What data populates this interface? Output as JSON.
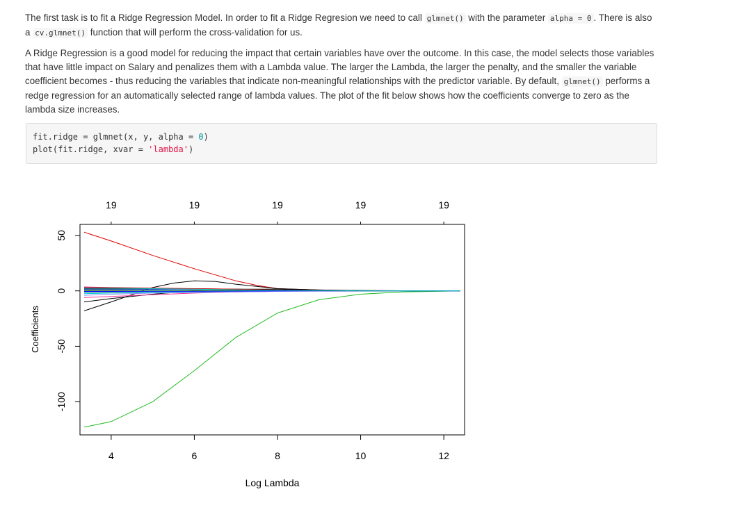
{
  "para1": {
    "t1": "The first task is to fit a Ridge Regression Model. In order to fit a Ridge Regresion we need to call ",
    "c1": "glmnet()",
    "t2": " with the parameter ",
    "c2": "alpha = 0",
    "t3": ". There is also a ",
    "c3": "cv.glmnet()",
    "t4": " function that will perform the cross-validation for us."
  },
  "para2": {
    "t1": "A Ridge Regression is a good model for reducing the impact that certain variables have over the outcome. In this case, the model selects those variables that have little impact on Salary and penalizes them with a Lambda value. The larger the Lambda, the larger the penalty, and the smaller the variable coefficient becomes - thus reducing the variables that indicate non-meaningful relationships with the predictor variable. By default, ",
    "c1": "glmnet()",
    "t2": " performs a redge regression for an automatically selected range of lambda values. The plot of the fit below shows how the coefficients converge to zero as the lambda size increases."
  },
  "code": {
    "l1_a": "fit.ridge = glmnet(x, y, alpha = ",
    "l1_num": "0",
    "l1_b": ")",
    "l2_a": "plot(fit.ridge, xvar = ",
    "l2_str": "'lambda'",
    "l2_b": ")"
  },
  "chart_data": {
    "type": "line",
    "title": "",
    "xlabel": "Log Lambda",
    "ylabel": "Coefficients",
    "xlim": [
      3.25,
      12.5
    ],
    "ylim": [
      -130,
      60
    ],
    "x_ticks": [
      4,
      6,
      8,
      10,
      12
    ],
    "y_ticks": [
      50,
      0,
      -50,
      -100
    ],
    "top_axis": {
      "positions": [
        4,
        6,
        8,
        10,
        12
      ],
      "labels": [
        "19",
        "19",
        "19",
        "19",
        "19"
      ]
    },
    "grid": false,
    "legend": "none",
    "series": [
      {
        "color": "#dd0000",
        "x": [
          3.35,
          4,
          5,
          6,
          7,
          7.5,
          8,
          9,
          10,
          11,
          12.4
        ],
        "y": [
          53,
          45,
          32,
          20,
          9,
          5,
          2,
          0.8,
          0.3,
          0.1,
          0
        ]
      },
      {
        "color": "#22bb22",
        "x": [
          3.35,
          4,
          5,
          6,
          7,
          8,
          9,
          10,
          11,
          12.4
        ],
        "y": [
          -123,
          -118,
          -100,
          -72,
          -42,
          -20,
          -8,
          -3,
          -1,
          0
        ]
      },
      {
        "color": "#000000",
        "x": [
          3.35,
          4,
          5,
          5.5,
          6,
          6.5,
          7,
          7.5,
          8,
          9,
          10,
          11,
          12.4
        ],
        "y": [
          -18,
          -10,
          3,
          7,
          9,
          8.5,
          6,
          4,
          2,
          0.8,
          0.3,
          0.1,
          0
        ]
      },
      {
        "color": "#000000",
        "x": [
          3.35,
          4,
          5,
          6,
          7,
          8,
          9,
          10,
          11,
          12.4
        ],
        "y": [
          -10,
          -7,
          -3,
          0,
          1.5,
          1.5,
          0.6,
          0.2,
          0.05,
          0
        ]
      },
      {
        "color": "#ff00ff",
        "x": [
          3.35,
          4,
          5,
          6,
          7,
          8,
          9,
          10,
          11,
          12.4
        ],
        "y": [
          3,
          2.5,
          2,
          1.5,
          1,
          0.5,
          0.2,
          0.1,
          0,
          0
        ]
      },
      {
        "color": "#0000ff",
        "x": [
          3.35,
          4,
          5,
          6,
          7,
          8,
          9,
          10,
          11,
          12.4
        ],
        "y": [
          1.5,
          1.5,
          1.5,
          1.5,
          1.2,
          0.7,
          0.3,
          0.1,
          0,
          0
        ]
      },
      {
        "color": "#00cccc",
        "x": [
          3.35,
          4,
          5,
          6,
          7,
          8,
          9,
          10,
          11,
          12.4
        ],
        "y": [
          -2.5,
          -2,
          -1.5,
          -1,
          -0.5,
          -0.2,
          -0.1,
          0,
          0,
          0
        ]
      },
      {
        "color": "#bbbb00",
        "x": [
          3.35,
          4,
          5,
          6,
          7,
          8,
          9,
          10,
          11,
          12.4
        ],
        "y": [
          0.5,
          0.5,
          0.4,
          0.3,
          0.2,
          0.1,
          0,
          0,
          0,
          0
        ]
      },
      {
        "color": "#999999",
        "x": [
          3.35,
          4,
          5,
          6,
          7,
          8,
          9,
          10,
          11,
          12.4
        ],
        "y": [
          -1,
          -1,
          -0.8,
          -0.6,
          -0.4,
          -0.2,
          -0.1,
          0,
          0,
          0
        ]
      },
      {
        "color": "#ee3399",
        "x": [
          3.35,
          4,
          5,
          6,
          7,
          8,
          9,
          10,
          11,
          12.4
        ],
        "y": [
          -6,
          -5,
          -3.5,
          -2,
          -1,
          -0.4,
          -0.1,
          0,
          0,
          0
        ]
      },
      {
        "color": "#333333",
        "x": [
          3.35,
          4,
          5,
          6,
          7,
          8,
          9,
          10,
          11,
          12.4
        ],
        "y": [
          2,
          2,
          2,
          2,
          1.5,
          0.8,
          0.3,
          0.1,
          0,
          0
        ]
      },
      {
        "color": "#8888ff",
        "x": [
          3.35,
          4,
          5,
          6,
          7,
          8,
          9,
          10,
          11,
          12.4
        ],
        "y": [
          -4,
          -3,
          -2,
          -1.5,
          -1,
          -0.5,
          -0.2,
          0,
          0,
          0
        ]
      },
      {
        "color": "#66aa66",
        "x": [
          3.35,
          4,
          5,
          6,
          7,
          8,
          9,
          10,
          11,
          12.4
        ],
        "y": [
          1,
          1,
          0.8,
          0.6,
          0.4,
          0.2,
          0.1,
          0,
          0,
          0
        ]
      },
      {
        "color": "#aa44aa",
        "x": [
          3.35,
          4,
          5,
          6,
          7,
          8,
          9,
          10,
          11,
          12.4
        ],
        "y": [
          0,
          0,
          0.5,
          1,
          0.8,
          0.4,
          0.1,
          0,
          0,
          0
        ]
      },
      {
        "color": "#44aacc",
        "x": [
          3.35,
          4,
          5,
          6,
          7,
          8,
          9,
          10,
          11,
          12.4
        ],
        "y": [
          -1.5,
          -1.5,
          -1,
          -0.5,
          -0.3,
          -0.1,
          0,
          0,
          0,
          0
        ]
      },
      {
        "color": "#dd0000",
        "x": [
          3.35,
          4,
          5,
          6,
          7,
          8,
          9,
          10,
          11,
          12.4
        ],
        "y": [
          3.5,
          3,
          2.5,
          2,
          1.5,
          0.8,
          0.3,
          0.1,
          0,
          0
        ]
      },
      {
        "color": "#22bb22",
        "x": [
          3.35,
          4,
          5,
          6,
          7,
          8,
          9,
          10,
          11,
          12.4
        ],
        "y": [
          0.5,
          0.5,
          0.5,
          0.4,
          0.3,
          0.2,
          0.1,
          0,
          0,
          0
        ]
      },
      {
        "color": "#0000ff",
        "x": [
          3.35,
          4,
          5,
          6,
          7,
          8,
          9,
          10,
          11,
          12.4
        ],
        "y": [
          -0.5,
          -0.5,
          -0.4,
          -0.3,
          -0.2,
          -0.1,
          0,
          0,
          0,
          0
        ]
      },
      {
        "color": "#00cccc",
        "x": [
          3.35,
          4,
          5,
          6,
          7,
          8,
          9,
          10,
          11,
          12.4
        ],
        "y": [
          2.5,
          2.5,
          2,
          1.5,
          1,
          0.5,
          0.2,
          0,
          0,
          0
        ]
      }
    ]
  }
}
